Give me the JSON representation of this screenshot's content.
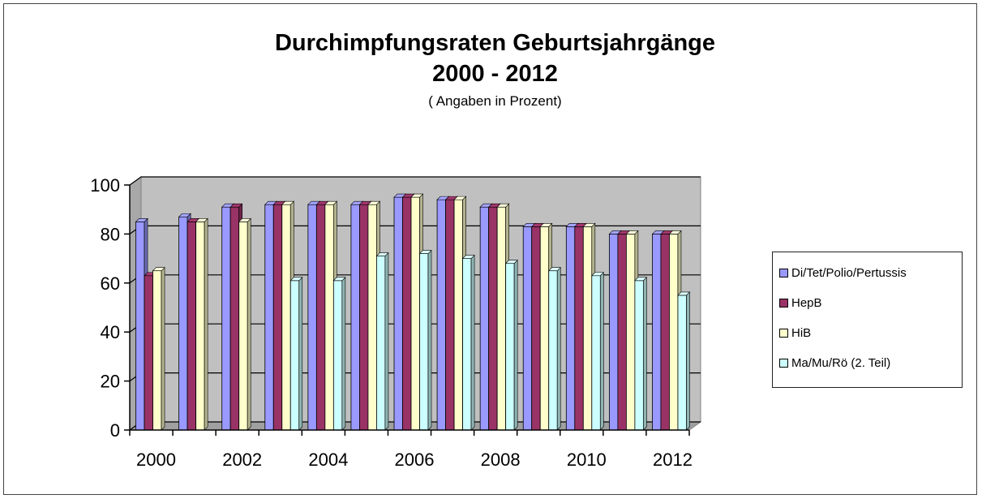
{
  "chart_data": {
    "type": "bar",
    "title_line1": "Durchimpfungsraten Geburtsjahrgänge",
    "title_line2": "2000 - 2012",
    "subtitle": "( Angaben in Prozent)",
    "xlabel": "",
    "ylabel": "",
    "ylim": [
      0,
      100
    ],
    "yticks": [
      0,
      20,
      40,
      60,
      80,
      100
    ],
    "xtick_labels": [
      "2000",
      "2002",
      "2004",
      "2006",
      "2008",
      "2010",
      "2012"
    ],
    "categories": [
      "2000",
      "2001",
      "2002",
      "2003",
      "2004",
      "2005",
      "2006",
      "2007",
      "2008",
      "2009",
      "2010",
      "2011",
      "2012"
    ],
    "legend_position": "right",
    "grid": true,
    "series": [
      {
        "name": "Di/Tet/Polio/Pertussis",
        "color": "#9999FF",
        "values": [
          85,
          87,
          91,
          92,
          92,
          92,
          95,
          94,
          91,
          83,
          83,
          80,
          80
        ]
      },
      {
        "name": "HepB",
        "color": "#993366",
        "values": [
          63,
          85,
          91,
          92,
          92,
          92,
          95,
          94,
          91,
          83,
          83,
          80,
          80
        ]
      },
      {
        "name": "HiB",
        "color": "#FFFFCC",
        "values": [
          65,
          85,
          85,
          92,
          92,
          92,
          95,
          94,
          91,
          83,
          83,
          80,
          80
        ]
      },
      {
        "name": "Ma/Mu/Rö (2. Teil)",
        "color": "#CCFFFF",
        "values": [
          null,
          null,
          null,
          61,
          61,
          71,
          72,
          70,
          68,
          65,
          63,
          61,
          55
        ]
      }
    ]
  }
}
